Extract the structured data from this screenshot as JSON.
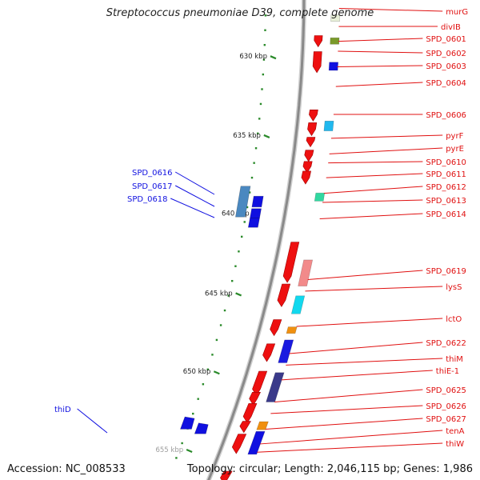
{
  "title": "Streptococcus pneumoniae D39, complete genome",
  "footer": {
    "accession": "Accession: NC_008533",
    "summary": "Topology: circular; Length: 2,046,115 bp; Genes: 1,986"
  },
  "colors": {
    "backbone": "#8a8a8a",
    "tick": "#2a8a2a",
    "right_label": "#e01010",
    "left_label": "#1010e0",
    "kbp_label": "#222222"
  },
  "kbp_ticks": [
    "630 kbp",
    "635 kbp",
    "640 kbp",
    "645 kbp",
    "650 kbp",
    "655 kbp"
  ],
  "right_labels": [
    "murG",
    "divIB",
    "SPD_0601",
    "SPD_0602",
    "SPD_0603",
    "SPD_0604",
    "SPD_0606",
    "pyrF",
    "pyrE",
    "SPD_0610",
    "SPD_0611",
    "SPD_0612",
    "SPD_0613",
    "SPD_0614",
    "SPD_0619",
    "lysS",
    "lctO",
    "SPD_0622",
    "thiM",
    "thiE-1",
    "SPD_0625",
    "SPD_0626",
    "SPD_0627",
    "tenA",
    "thiW"
  ],
  "left_labels": [
    "SPD_0616",
    "SPD_0617",
    "SPD_0618",
    "thiD"
  ]
}
